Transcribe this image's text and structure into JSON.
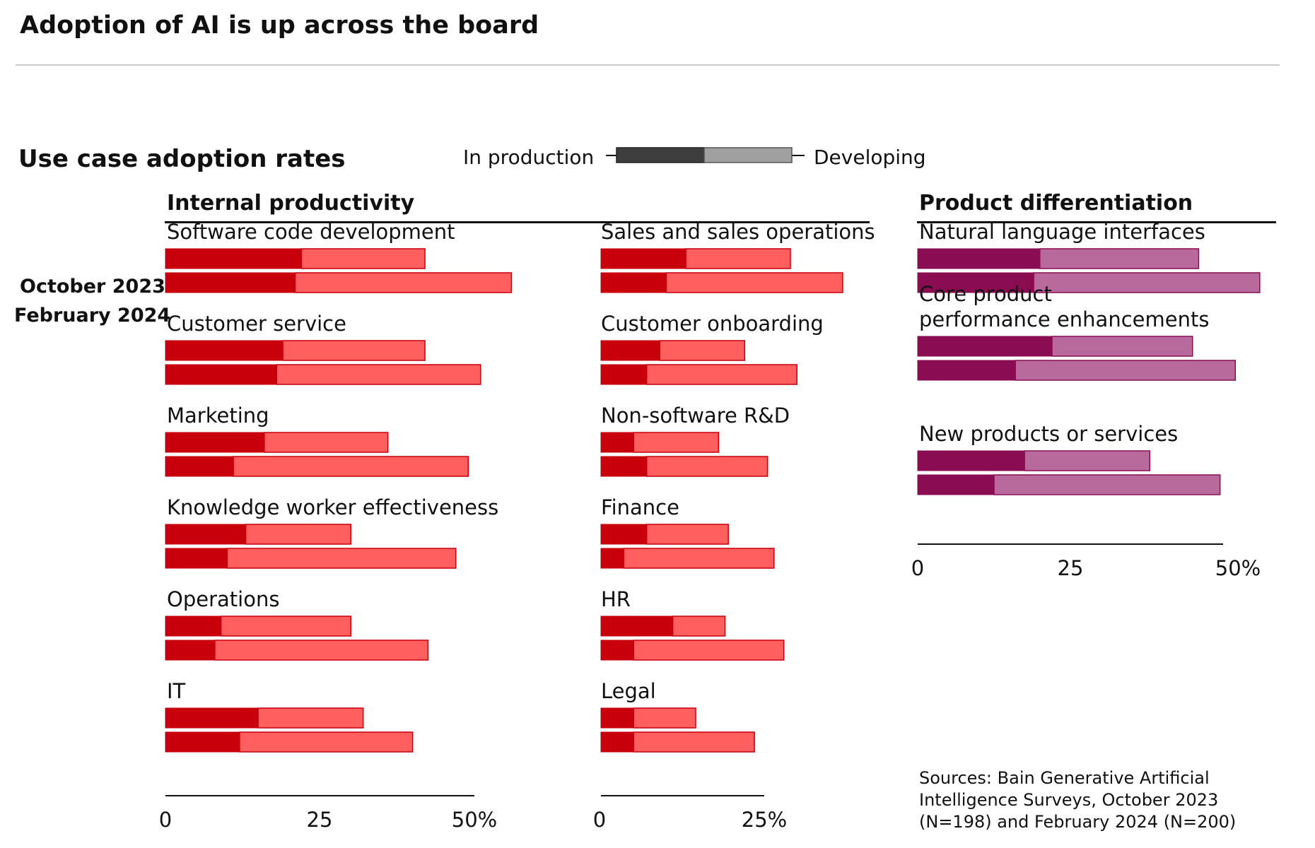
{
  "title": "Adoption of AI is up across the board",
  "subtitle": "Use case adoption rates",
  "legend": {
    "in_production": "In production",
    "developing": "Developing"
  },
  "series_labels": {
    "oct_2023": "October 2023",
    "feb_2024": "February 2024"
  },
  "colors": {
    "internal_production": "#c7000b",
    "internal_developing": "#ff5f5f",
    "product_production": "#8a0d52",
    "product_developing": "#b96a9c",
    "legend_production": "#3d3d3d",
    "legend_developing": "#a0a0a0"
  },
  "source": "Sources: Bain Generative Artificial Intelligence Surveys, October 2023 (N=198) and February 2024 (N=200)",
  "chart_data": [
    {
      "type": "bar",
      "id": "internal-col1",
      "group": "Internal productivity",
      "orientation": "horizontal",
      "stacked": true,
      "xlim": [
        0,
        50
      ],
      "ticks": [
        "0",
        "25",
        "50%"
      ],
      "categories": [
        {
          "name": "Software code development",
          "oct_2023": {
            "production": 22,
            "developing": 20
          },
          "feb_2024": {
            "production": 21,
            "developing": 35
          }
        },
        {
          "name": "Customer service",
          "oct_2023": {
            "production": 19,
            "developing": 23
          },
          "feb_2024": {
            "production": 18,
            "developing": 33
          }
        },
        {
          "name": "Marketing",
          "oct_2023": {
            "production": 16,
            "developing": 20
          },
          "feb_2024": {
            "production": 11,
            "developing": 38
          }
        },
        {
          "name": "Knowledge worker effectiveness",
          "oct_2023": {
            "production": 13,
            "developing": 17
          },
          "feb_2024": {
            "production": 10,
            "developing": 37
          }
        },
        {
          "name": "Operations",
          "oct_2023": {
            "production": 9,
            "developing": 21
          },
          "feb_2024": {
            "production": 8,
            "developing": 34.5
          }
        },
        {
          "name": "IT",
          "oct_2023": {
            "production": 15,
            "developing": 17
          },
          "feb_2024": {
            "production": 12,
            "developing": 28
          }
        }
      ]
    },
    {
      "type": "bar",
      "id": "internal-col2",
      "group": "Internal productivity",
      "orientation": "horizontal",
      "stacked": true,
      "xlim": [
        0,
        25
      ],
      "ticks": [
        "0",
        "25%"
      ],
      "categories": [
        {
          "name": "Sales and sales operations",
          "oct_2023": {
            "production": 13,
            "developing": 16
          },
          "feb_2024": {
            "production": 10,
            "developing": 27
          }
        },
        {
          "name": "Customer onboarding",
          "oct_2023": {
            "production": 9,
            "developing": 13
          },
          "feb_2024": {
            "production": 7,
            "developing": 23
          }
        },
        {
          "name": "Non-software R&D",
          "oct_2023": {
            "production": 5,
            "developing": 13
          },
          "feb_2024": {
            "production": 7,
            "developing": 18.5
          }
        },
        {
          "name": "Finance",
          "oct_2023": {
            "production": 7,
            "developing": 12.5
          },
          "feb_2024": {
            "production": 3.5,
            "developing": 23
          }
        },
        {
          "name": "HR",
          "oct_2023": {
            "production": 11,
            "developing": 8
          },
          "feb_2024": {
            "production": 5,
            "developing": 23
          }
        },
        {
          "name": "Legal",
          "oct_2023": {
            "production": 5,
            "developing": 9.5
          },
          "feb_2024": {
            "production": 5,
            "developing": 18.5
          }
        }
      ]
    },
    {
      "type": "bar",
      "id": "product-diff",
      "group": "Product differentiation",
      "orientation": "horizontal",
      "stacked": true,
      "xlim": [
        0,
        50
      ],
      "ticks": [
        "0",
        "25",
        "50%"
      ],
      "categories": [
        {
          "name": "Natural language interfaces",
          "oct_2023": {
            "production": 20,
            "developing": 26
          },
          "feb_2024": {
            "production": 19,
            "developing": 37
          }
        },
        {
          "name": "Core product performance enhancements",
          "oct_2023": {
            "production": 22,
            "developing": 23
          },
          "feb_2024": {
            "production": 16,
            "developing": 36
          }
        },
        {
          "name": "New products or services",
          "oct_2023": {
            "production": 17.5,
            "developing": 20.5
          },
          "feb_2024": {
            "production": 12.5,
            "developing": 37
          }
        }
      ]
    }
  ]
}
